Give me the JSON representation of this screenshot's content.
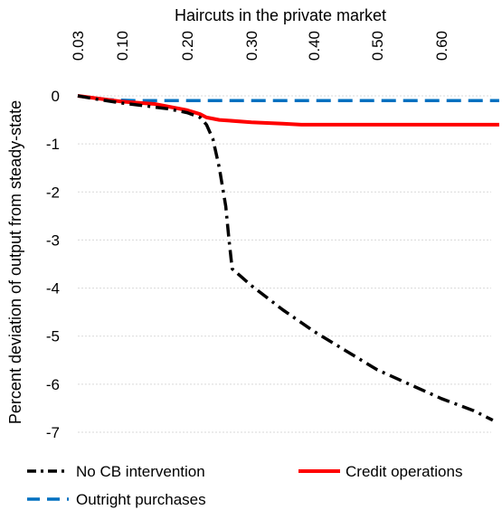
{
  "chart_data": {
    "type": "line",
    "xlabel": "Haircuts in the private market",
    "ylabel": "Percent deviation of output from steady-state",
    "x_ticks": [
      "0.03",
      "0.10",
      "0.20",
      "0.30",
      "0.40",
      "0.50",
      "0.60"
    ],
    "x_tick_values": [
      0.03,
      0.1,
      0.2,
      0.3,
      0.4,
      0.5,
      0.6
    ],
    "y_ticks": [
      "0",
      "-1",
      "-2",
      "-3",
      "-4",
      "-5",
      "-6",
      "-7"
    ],
    "y_tick_values": [
      0,
      -1,
      -2,
      -3,
      -4,
      -5,
      -6,
      -7
    ],
    "ylim": [
      -7.2,
      0.2
    ],
    "xlim": [
      0.03,
      0.69
    ],
    "x_axis_position": "top",
    "grid": "horizontal",
    "legend_position": "bottom",
    "series": [
      {
        "name": "No CB intervention",
        "color": "#000000",
        "style": "dash-dot",
        "x": [
          0.03,
          0.06,
          0.1,
          0.13,
          0.17,
          0.2,
          0.22,
          0.23,
          0.24,
          0.25,
          0.26,
          0.265,
          0.27,
          0.3,
          0.35,
          0.4,
          0.45,
          0.5,
          0.55,
          0.6,
          0.65,
          0.68
        ],
        "y": [
          0,
          -0.07,
          -0.15,
          -0.2,
          -0.27,
          -0.35,
          -0.45,
          -0.6,
          -0.9,
          -1.5,
          -2.3,
          -3.0,
          -3.6,
          -3.95,
          -4.45,
          -4.9,
          -5.3,
          -5.7,
          -6.0,
          -6.3,
          -6.55,
          -6.75
        ]
      },
      {
        "name": "Credit operations",
        "color": "#ff0000",
        "style": "solid",
        "x": [
          0.03,
          0.1,
          0.15,
          0.2,
          0.22,
          0.23,
          0.25,
          0.3,
          0.35,
          0.38,
          0.45,
          0.55,
          0.65,
          0.69
        ],
        "y": [
          0,
          -0.12,
          -0.17,
          -0.3,
          -0.38,
          -0.45,
          -0.5,
          -0.55,
          -0.58,
          -0.6,
          -0.6,
          -0.6,
          -0.6,
          -0.6
        ]
      },
      {
        "name": "Outright purchases",
        "color": "#0070c0",
        "style": "dash",
        "x": [
          0.03,
          0.08,
          0.12,
          0.2,
          0.3,
          0.4,
          0.5,
          0.6,
          0.69
        ],
        "y": [
          0,
          -0.08,
          -0.1,
          -0.1,
          -0.1,
          -0.1,
          -0.1,
          -0.1,
          -0.1
        ]
      }
    ]
  }
}
